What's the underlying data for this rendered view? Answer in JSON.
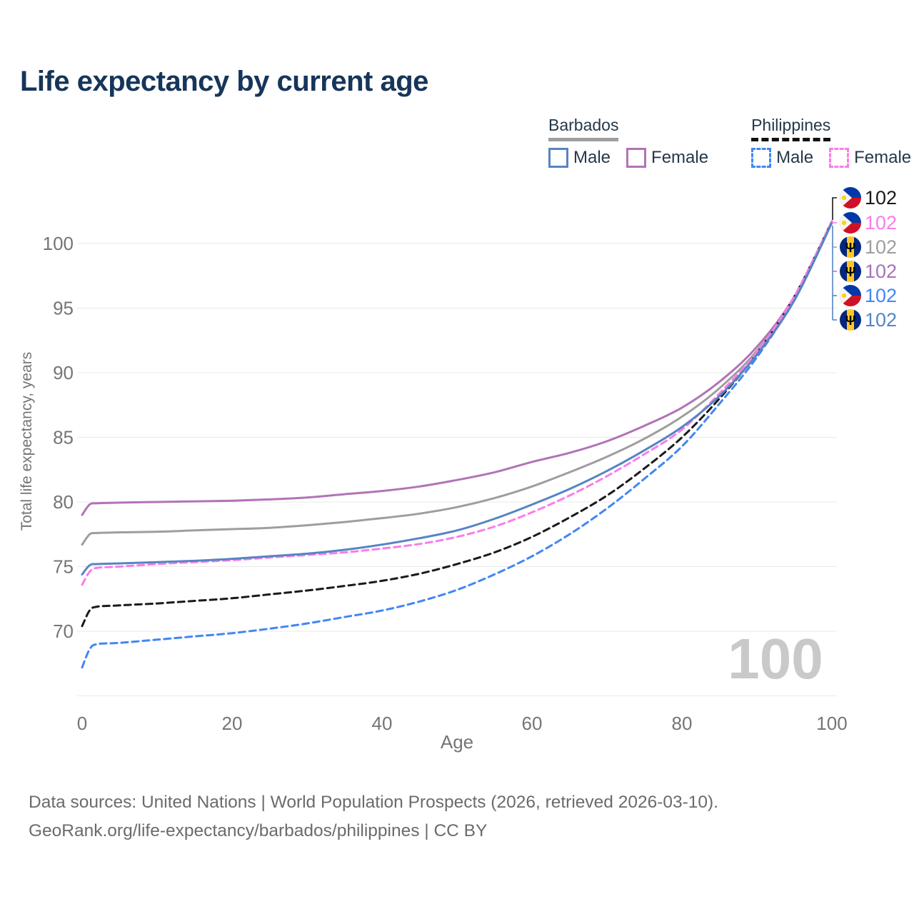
{
  "title": "Life expectancy by current age",
  "legend": {
    "groups": [
      {
        "name": "Barbados",
        "line_style": "solid",
        "underline_color": "#9e9e9e",
        "items": [
          {
            "label": "Male",
            "color": "#5585c2"
          },
          {
            "label": "Female",
            "color": "#b273b6"
          }
        ]
      },
      {
        "name": "Philippines",
        "line_style": "dashed",
        "underline_color": "#111111",
        "items": [
          {
            "label": "Male",
            "color": "#4286f5"
          },
          {
            "label": "Female",
            "color": "#fb7ce8"
          }
        ]
      }
    ]
  },
  "watermark": "100",
  "footer": {
    "line1": "Data sources: United Nations | World Population Prospects (2026, retrieved 2026-03-10).",
    "line2": "GeoRank.org/life-expectancy/barbados/philippines | CC BY"
  },
  "chart_data": {
    "type": "line",
    "title": "Life expectancy by current age",
    "xlabel": "Age",
    "ylabel": "Total life expectancy, years",
    "xlim": [
      0,
      100
    ],
    "ylim": [
      65,
      103
    ],
    "grid": true,
    "legend_position": "top-right",
    "x_ticks": [
      0,
      20,
      40,
      60,
      80,
      100
    ],
    "y_ticks": [
      70,
      75,
      80,
      85,
      90,
      95,
      100
    ],
    "y_gridlines": [
      65,
      70,
      75,
      80,
      85,
      90,
      95,
      100
    ],
    "x": [
      0,
      1,
      2,
      5,
      10,
      15,
      20,
      25,
      30,
      35,
      40,
      45,
      50,
      55,
      60,
      65,
      70,
      75,
      80,
      85,
      90,
      95,
      100
    ],
    "series": [
      {
        "name": "Barbados",
        "country": "Barbados",
        "sex": "All",
        "color": "#9e9e9e",
        "dashed": false,
        "values": [
          76.7,
          77.5,
          77.6,
          77.65,
          77.7,
          77.8,
          77.9,
          78.0,
          78.2,
          78.45,
          78.75,
          79.1,
          79.6,
          80.3,
          81.2,
          82.3,
          83.5,
          84.9,
          86.6,
          88.8,
          91.7,
          95.8,
          101.7
        ]
      },
      {
        "name": "Barbados Female",
        "country": "Barbados",
        "sex": "Female",
        "color": "#b273b6",
        "dashed": false,
        "values": [
          79.0,
          79.8,
          79.9,
          79.95,
          80.0,
          80.05,
          80.1,
          80.2,
          80.35,
          80.6,
          80.85,
          81.2,
          81.7,
          82.3,
          83.1,
          83.8,
          84.7,
          85.9,
          87.3,
          89.3,
          92.0,
          95.9,
          101.7
        ]
      },
      {
        "name": "Philippines",
        "country": "Philippines",
        "sex": "All",
        "color": "#1a1a1a",
        "dashed": true,
        "values": [
          70.4,
          71.6,
          71.9,
          72.0,
          72.15,
          72.35,
          72.55,
          72.85,
          73.15,
          73.5,
          73.9,
          74.45,
          75.2,
          76.1,
          77.3,
          78.8,
          80.5,
          82.6,
          85.0,
          88.0,
          91.5,
          95.9,
          101.7
        ]
      },
      {
        "name": "Philippines Male",
        "country": "Philippines",
        "sex": "Male",
        "color": "#4286f5",
        "dashed": true,
        "values": [
          67.2,
          68.6,
          69.0,
          69.1,
          69.35,
          69.6,
          69.85,
          70.2,
          70.6,
          71.1,
          71.6,
          72.3,
          73.2,
          74.4,
          75.8,
          77.5,
          79.5,
          81.8,
          84.3,
          87.6,
          91.2,
          95.7,
          101.6
        ]
      },
      {
        "name": "Philippines Female",
        "country": "Philippines",
        "sex": "Female",
        "color": "#fb7ce8",
        "dashed": true,
        "values": [
          73.6,
          74.6,
          74.9,
          75.0,
          75.2,
          75.35,
          75.5,
          75.7,
          75.9,
          76.1,
          76.4,
          76.75,
          77.3,
          78.1,
          79.2,
          80.5,
          82.0,
          83.7,
          85.6,
          88.4,
          91.6,
          95.9,
          101.7
        ]
      },
      {
        "name": "Barbados Male",
        "country": "Barbados",
        "sex": "Male",
        "color": "#5585c2",
        "dashed": false,
        "values": [
          74.4,
          75.1,
          75.2,
          75.25,
          75.35,
          75.45,
          75.6,
          75.8,
          76.0,
          76.3,
          76.7,
          77.2,
          77.8,
          78.7,
          79.8,
          81.0,
          82.4,
          84.0,
          85.8,
          88.2,
          91.4,
          95.6,
          101.6
        ]
      }
    ],
    "end_labels": [
      {
        "flag": "philippines",
        "series": "Philippines",
        "text": "102",
        "color": "#1a1a1a"
      },
      {
        "flag": "philippines",
        "series": "Philippines Female",
        "text": "102",
        "color": "#fb7ce8"
      },
      {
        "flag": "barbados",
        "series": "Barbados",
        "text": "102",
        "color": "#9e9e9e"
      },
      {
        "flag": "barbados",
        "series": "Barbados Female",
        "text": "102",
        "color": "#a873b5"
      },
      {
        "flag": "philippines",
        "series": "Philippines Male",
        "text": "102",
        "color": "#4286f5"
      },
      {
        "flag": "barbados",
        "series": "Barbados Male",
        "text": "102",
        "color": "#5585c2"
      }
    ]
  }
}
